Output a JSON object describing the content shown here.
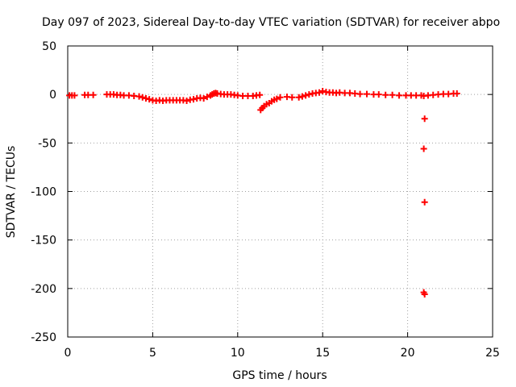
{
  "chart_data": {
    "type": "scatter",
    "title": "Day 097 of 2023, Sidereal Day-to-day VTEC variation (SDTVAR) for receiver abpo",
    "xlabel": "GPS time / hours",
    "ylabel": "SDTVAR / TECUs",
    "xlim": [
      0,
      25
    ],
    "ylim": [
      -250,
      50
    ],
    "xticks": [
      0,
      5,
      10,
      15,
      20,
      25
    ],
    "yticks": [
      -250,
      -200,
      -150,
      -100,
      -50,
      0,
      50
    ],
    "xtick_labels": [
      "0",
      "5",
      "10",
      "15",
      "20",
      "25"
    ],
    "ytick_labels": [
      "-250",
      "-200",
      "-150",
      "-100",
      "-50",
      "0",
      "50"
    ],
    "grid": true,
    "marker": "+",
    "color": "#ff0000",
    "series": [
      {
        "name": "SDTVAR",
        "points": [
          [
            0.1,
            -1
          ],
          [
            0.25,
            -1
          ],
          [
            0.4,
            -1
          ],
          [
            1.0,
            -0.5
          ],
          [
            1.2,
            -0.5
          ],
          [
            1.5,
            -0.5
          ],
          [
            2.3,
            0
          ],
          [
            2.5,
            0
          ],
          [
            2.7,
            0
          ],
          [
            2.9,
            -0.5
          ],
          [
            3.1,
            -0.5
          ],
          [
            3.3,
            -1
          ],
          [
            3.6,
            -1
          ],
          [
            3.9,
            -1.5
          ],
          [
            4.2,
            -2
          ],
          [
            4.4,
            -3
          ],
          [
            4.6,
            -4
          ],
          [
            4.8,
            -5
          ],
          [
            5.0,
            -6
          ],
          [
            5.2,
            -6.5
          ],
          [
            5.4,
            -6
          ],
          [
            5.6,
            -6.5
          ],
          [
            5.8,
            -6
          ],
          [
            6.0,
            -6
          ],
          [
            6.2,
            -6
          ],
          [
            6.4,
            -6
          ],
          [
            6.6,
            -6
          ],
          [
            6.8,
            -6
          ],
          [
            7.0,
            -6.5
          ],
          [
            7.2,
            -5.5
          ],
          [
            7.4,
            -5
          ],
          [
            7.6,
            -4
          ],
          [
            7.8,
            -3.5
          ],
          [
            8.0,
            -4
          ],
          [
            8.2,
            -2.5
          ],
          [
            8.4,
            -1
          ],
          [
            8.5,
            0
          ],
          [
            8.6,
            1
          ],
          [
            8.7,
            1.5
          ],
          [
            8.8,
            1
          ],
          [
            9.0,
            0.5
          ],
          [
            9.2,
            0
          ],
          [
            9.4,
            0
          ],
          [
            9.6,
            0
          ],
          [
            9.8,
            -0.5
          ],
          [
            10.0,
            -1
          ],
          [
            10.3,
            -1.5
          ],
          [
            10.6,
            -1.5
          ],
          [
            10.9,
            -1.5
          ],
          [
            11.1,
            -1
          ],
          [
            11.3,
            -0.5
          ],
          [
            11.35,
            -16
          ],
          [
            11.45,
            -14
          ],
          [
            11.55,
            -12
          ],
          [
            11.7,
            -10
          ],
          [
            11.85,
            -9
          ],
          [
            12.0,
            -7
          ],
          [
            12.15,
            -5.5
          ],
          [
            12.3,
            -4.5
          ],
          [
            12.5,
            -3
          ],
          [
            12.9,
            -2.5
          ],
          [
            13.2,
            -3
          ],
          [
            13.6,
            -3
          ],
          [
            13.8,
            -2
          ],
          [
            14.0,
            -1
          ],
          [
            14.2,
            0
          ],
          [
            14.4,
            1
          ],
          [
            14.6,
            1.5
          ],
          [
            14.8,
            2
          ],
          [
            15.0,
            3.5
          ],
          [
            15.2,
            2.5
          ],
          [
            15.4,
            2
          ],
          [
            15.6,
            2
          ],
          [
            15.8,
            1.5
          ],
          [
            16.0,
            2
          ],
          [
            16.3,
            1.5
          ],
          [
            16.6,
            1.5
          ],
          [
            16.9,
            1
          ],
          [
            17.2,
            0.5
          ],
          [
            17.6,
            0.5
          ],
          [
            18.0,
            0
          ],
          [
            18.3,
            0
          ],
          [
            18.7,
            -0.5
          ],
          [
            19.1,
            -0.5
          ],
          [
            19.5,
            -1
          ],
          [
            19.9,
            -1
          ],
          [
            20.2,
            -1
          ],
          [
            20.5,
            -1
          ],
          [
            20.8,
            -1
          ],
          [
            20.95,
            -1.5
          ],
          [
            21.0,
            -25
          ],
          [
            20.95,
            -56
          ],
          [
            21.0,
            -111
          ],
          [
            20.95,
            -204
          ],
          [
            21.0,
            -206
          ],
          [
            21.2,
            -1
          ],
          [
            21.5,
            -0.5
          ],
          [
            21.8,
            0
          ],
          [
            22.1,
            0.5
          ],
          [
            22.4,
            0.5
          ],
          [
            22.7,
            1
          ],
          [
            22.9,
            1
          ]
        ]
      }
    ]
  }
}
